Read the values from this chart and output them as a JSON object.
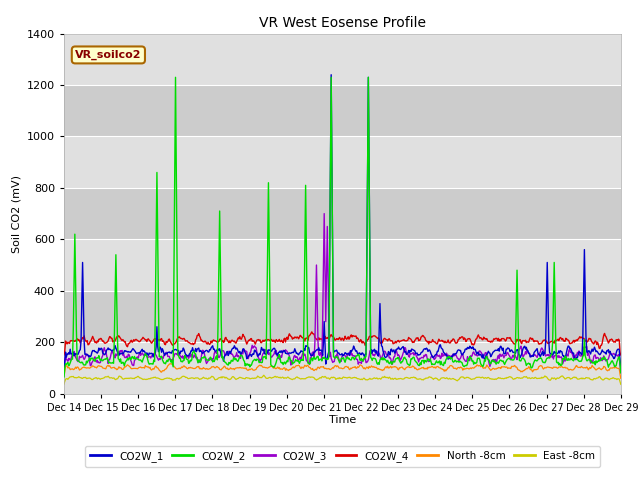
{
  "title": "VR West Eosense Profile",
  "ylabel": "Soil CO2 (mV)",
  "xlabel": "Time",
  "annotation_text": "VR_soilco2",
  "ylim": [
    0,
    1400
  ],
  "yticks": [
    0,
    200,
    400,
    600,
    800,
    1000,
    1200,
    1400
  ],
  "xtick_labels": [
    "Dec 14",
    "Dec 15",
    "Dec 16",
    "Dec 17",
    "Dec 18",
    "Dec 19",
    "Dec 20",
    "Dec 21",
    "Dec 22",
    "Dec 23",
    "Dec 24",
    "Dec 25",
    "Dec 26",
    "Dec 27",
    "Dec 28",
    "Dec 29"
  ],
  "num_days": 15,
  "series_colors": {
    "CO2W_1": "#0000cc",
    "CO2W_2": "#00dd00",
    "CO2W_3": "#9900cc",
    "CO2W_4": "#dd0000",
    "North_8cm": "#ff8800",
    "East_8cm": "#cccc00"
  },
  "legend_labels": [
    "CO2W_1",
    "CO2W_2",
    "CO2W_3",
    "CO2W_4",
    "North -8cm",
    "East -8cm"
  ],
  "plot_bg_color": "#d8d8d8",
  "grid_color": "#ffffff",
  "annotation_box_color": "#ffffcc",
  "annotation_border_color": "#aa6600",
  "annotation_text_color": "#880000",
  "band_color_light": "#e0e0e0",
  "band_color_dark": "#cccccc"
}
